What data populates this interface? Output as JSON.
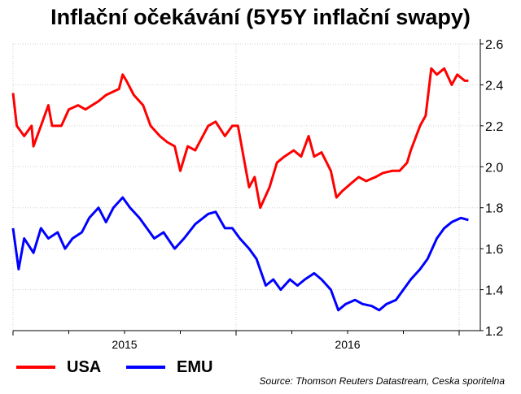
{
  "chart_data": {
    "type": "line",
    "title": "Inflační očekávání (5Y5Y inflační swapy)",
    "xlabel": "",
    "ylabel": "",
    "x_unit": "months since 2014-07",
    "xlim": [
      0,
      25
    ],
    "ylim": [
      1.2,
      2.6
    ],
    "yticks": [
      1.2,
      1.4,
      1.6,
      1.8,
      2.0,
      2.2,
      2.4,
      2.6
    ],
    "ytick_labels": [
      "1.2",
      "1.4",
      "1.6",
      "1.8",
      "2.0",
      "2.2",
      "2.4",
      "2.6"
    ],
    "xtick_labels": [
      {
        "label": "2015",
        "x": 6
      },
      {
        "label": "2016",
        "x": 18
      }
    ],
    "grid": true,
    "legend_position": "bottom-left",
    "series": [
      {
        "name": "USA",
        "color": "#ff0000",
        "x": [
          0,
          0.2,
          0.6,
          1.0,
          1.1,
          1.5,
          1.9,
          2.1,
          2.6,
          3.0,
          3.5,
          3.9,
          4.6,
          5.0,
          5.7,
          5.9,
          6.1,
          6.5,
          7.0,
          7.4,
          7.9,
          8.3,
          8.7,
          9.0,
          9.4,
          9.8,
          10.5,
          10.9,
          11.4,
          11.8,
          12.1,
          12.5,
          12.7,
          13.0,
          13.3,
          13.8,
          14.2,
          14.6,
          15.1,
          15.5,
          15.9,
          16.2,
          16.6,
          17.1,
          17.4,
          17.7,
          18.2,
          18.6,
          19.0,
          19.5,
          19.9,
          20.4,
          20.8,
          21.2,
          21.4,
          21.9,
          22.2,
          22.5,
          22.8,
          23.2,
          23.6,
          23.9,
          24.3,
          24.5
        ],
        "values": [
          2.36,
          2.2,
          2.15,
          2.2,
          2.1,
          2.2,
          2.3,
          2.2,
          2.2,
          2.28,
          2.3,
          2.28,
          2.32,
          2.35,
          2.38,
          2.45,
          2.42,
          2.35,
          2.3,
          2.2,
          2.15,
          2.12,
          2.1,
          1.98,
          2.1,
          2.08,
          2.2,
          2.22,
          2.15,
          2.2,
          2.2,
          2.0,
          1.9,
          1.95,
          1.8,
          1.9,
          2.02,
          2.05,
          2.08,
          2.05,
          2.15,
          2.05,
          2.07,
          1.98,
          1.85,
          1.88,
          1.92,
          1.95,
          1.93,
          1.95,
          1.97,
          1.98,
          1.98,
          2.02,
          2.08,
          2.2,
          2.25,
          2.48,
          2.45,
          2.48,
          2.4,
          2.45,
          2.42,
          2.42
        ]
      },
      {
        "name": "EMU",
        "color": "#0000ff",
        "x": [
          0,
          0.3,
          0.6,
          1.1,
          1.5,
          1.9,
          2.4,
          2.8,
          3.2,
          3.7,
          4.1,
          4.6,
          5.0,
          5.4,
          5.9,
          6.3,
          6.8,
          7.2,
          7.6,
          8.1,
          8.7,
          9.2,
          9.8,
          10.5,
          10.9,
          11.4,
          11.8,
          12.2,
          12.7,
          13.1,
          13.6,
          14.0,
          14.4,
          14.9,
          15.3,
          15.7,
          16.2,
          16.6,
          17.1,
          17.5,
          17.9,
          18.4,
          18.8,
          19.3,
          19.7,
          20.1,
          20.6,
          21.0,
          21.4,
          21.9,
          22.3,
          22.8,
          23.2,
          23.6,
          24.1,
          24.5
        ],
        "values": [
          1.7,
          1.5,
          1.65,
          1.58,
          1.7,
          1.65,
          1.68,
          1.6,
          1.65,
          1.68,
          1.75,
          1.8,
          1.73,
          1.8,
          1.85,
          1.8,
          1.75,
          1.7,
          1.65,
          1.68,
          1.6,
          1.65,
          1.72,
          1.77,
          1.78,
          1.7,
          1.7,
          1.65,
          1.6,
          1.55,
          1.42,
          1.45,
          1.4,
          1.45,
          1.42,
          1.45,
          1.48,
          1.45,
          1.4,
          1.3,
          1.33,
          1.35,
          1.33,
          1.32,
          1.3,
          1.33,
          1.35,
          1.4,
          1.45,
          1.5,
          1.55,
          1.65,
          1.7,
          1.73,
          1.75,
          1.74
        ]
      }
    ]
  },
  "legend": {
    "usa": "USA",
    "emu": "EMU"
  },
  "source": "Source: Thomson Reuters Datastream, Ceska sporitelna"
}
